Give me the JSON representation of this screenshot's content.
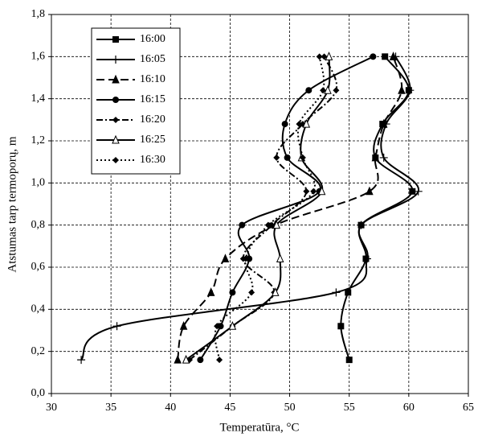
{
  "chart_data": {
    "type": "line",
    "xlabel": "Temperatūra, °C",
    "ylabel": "Atstumas tarp termoporų, m",
    "y": [
      0.16,
      0.32,
      0.48,
      0.64,
      0.8,
      0.96,
      1.12,
      1.28,
      1.44,
      1.6
    ],
    "series": [
      {
        "name": "16:00",
        "color": "#000000",
        "dash": "none",
        "marker": "square",
        "values": [
          55.0,
          54.3,
          54.9,
          56.4,
          56.0,
          60.3,
          57.2,
          57.8,
          60.0,
          58.0
        ]
      },
      {
        "name": "16:05",
        "color": "#000000",
        "dash": "none",
        "marker": "plus",
        "values": [
          32.5,
          35.5,
          53.9,
          56.5,
          56.0,
          60.8,
          57.9,
          58.1,
          60.1,
          58.9
        ]
      },
      {
        "name": "16:10",
        "color": "#000000",
        "dash": "10,5",
        "marker": "triangle",
        "values": [
          40.6,
          41.1,
          43.4,
          44.6,
          48.8,
          56.7,
          57.2,
          57.9,
          59.4,
          58.7
        ]
      },
      {
        "name": "16:15",
        "color": "#000000",
        "dash": "none",
        "marker": "circle",
        "values": [
          42.5,
          44.2,
          45.2,
          46.6,
          46.0,
          52.5,
          49.8,
          49.6,
          51.6,
          57.0
        ]
      },
      {
        "name": "16:20",
        "color": "#000000",
        "dash": "8,3,2,3",
        "marker": "diamond",
        "values": [
          41.6,
          45.2,
          48.7,
          46.1,
          48.5,
          51.4,
          48.9,
          51.1,
          53.9,
          52.9
        ]
      },
      {
        "name": "16:25",
        "color": "#000000",
        "dash": "none",
        "marker": "open-triangle",
        "values": [
          41.3,
          45.2,
          48.8,
          49.2,
          48.9,
          52.7,
          51.0,
          51.4,
          53.2,
          53.3
        ]
      },
      {
        "name": "16:30",
        "color": "#000000",
        "dash": "2,3",
        "marker": "diamond",
        "values": [
          44.1,
          43.9,
          46.8,
          46.3,
          48.2,
          52.0,
          51.1,
          50.8,
          52.8,
          52.5
        ]
      }
    ],
    "xlim": [
      30,
      65
    ],
    "xticks": [
      30,
      35,
      40,
      45,
      50,
      55,
      60,
      65
    ],
    "ylim": [
      0,
      1.8
    ],
    "yticks": [
      {
        "value": 0,
        "label": "0,0"
      },
      {
        "value": 0.2,
        "label": "0,2"
      },
      {
        "value": 0.4,
        "label": "0,4"
      },
      {
        "value": 0.6,
        "label": "0,6"
      },
      {
        "value": 0.8,
        "label": "0,8"
      },
      {
        "value": 1.0,
        "label": "1,0"
      },
      {
        "value": 1.2,
        "label": "1,2"
      },
      {
        "value": 1.4,
        "label": "1,4"
      },
      {
        "value": 1.6,
        "label": "1,6"
      },
      {
        "value": 1.8,
        "label": "1,8"
      }
    ],
    "grid": true,
    "legend": "upper-left"
  }
}
